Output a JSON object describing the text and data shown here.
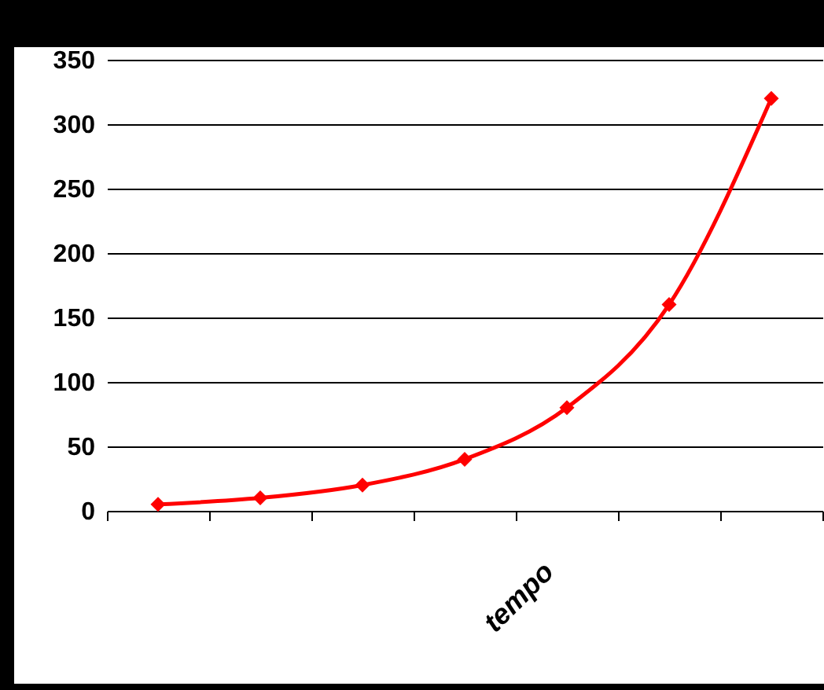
{
  "chart_data": {
    "type": "line",
    "xlabel": "tempo",
    "categories": [
      null,
      null,
      null,
      null,
      null,
      null,
      null
    ],
    "series": [
      {
        "color": "#ff0000",
        "values": [
          5,
          10,
          20,
          40,
          80,
          160,
          320
        ]
      }
    ],
    "ylim": [
      0,
      350
    ],
    "yticks": [
      0,
      50,
      100,
      150,
      200,
      250,
      300,
      350
    ],
    "grid": "y",
    "marker": "diamond",
    "line_style": "solid",
    "tick_labels": "y"
  }
}
